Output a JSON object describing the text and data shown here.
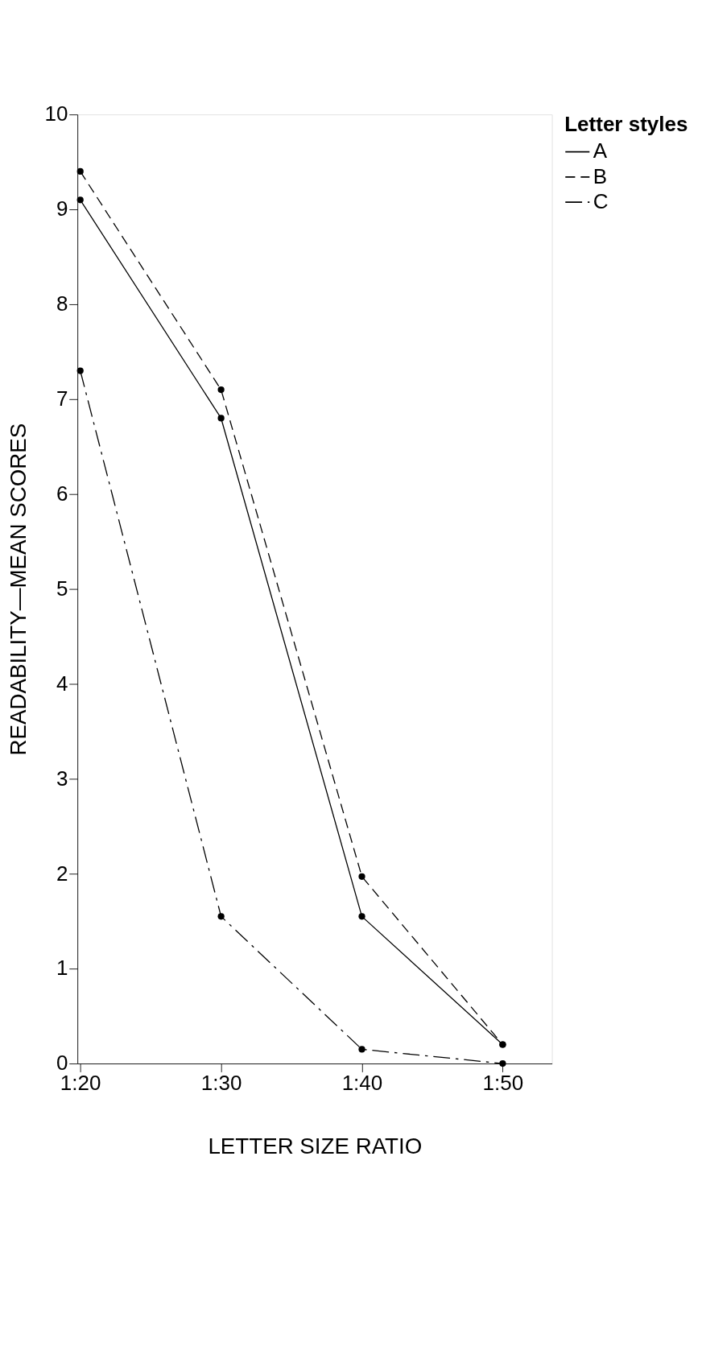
{
  "chart_data": {
    "type": "line",
    "xlabel": "LETTER SIZE RATIO",
    "ylabel": "READABILITY—MEAN SCORES",
    "legend_title": "Letter styles",
    "categories": [
      "1:20",
      "1:30",
      "1:40",
      "1:50"
    ],
    "series": [
      {
        "name": "A",
        "color": "#000000",
        "line_style": "solid",
        "values": [
          9.1,
          6.8,
          1.55,
          0.2
        ]
      },
      {
        "name": "B",
        "color": "#000000",
        "line_style": "dashed",
        "values": [
          9.4,
          7.1,
          1.97,
          0.2
        ]
      },
      {
        "name": "C",
        "color": "#000000",
        "line_style": "dashdot",
        "values": [
          7.3,
          1.55,
          0.15,
          0.0
        ]
      }
    ],
    "ylim": [
      0,
      10
    ],
    "yticks": [
      0,
      1,
      2,
      3,
      4,
      5,
      6,
      7,
      8,
      9,
      10
    ],
    "grid": false,
    "legend": "right",
    "marker": "circle"
  }
}
